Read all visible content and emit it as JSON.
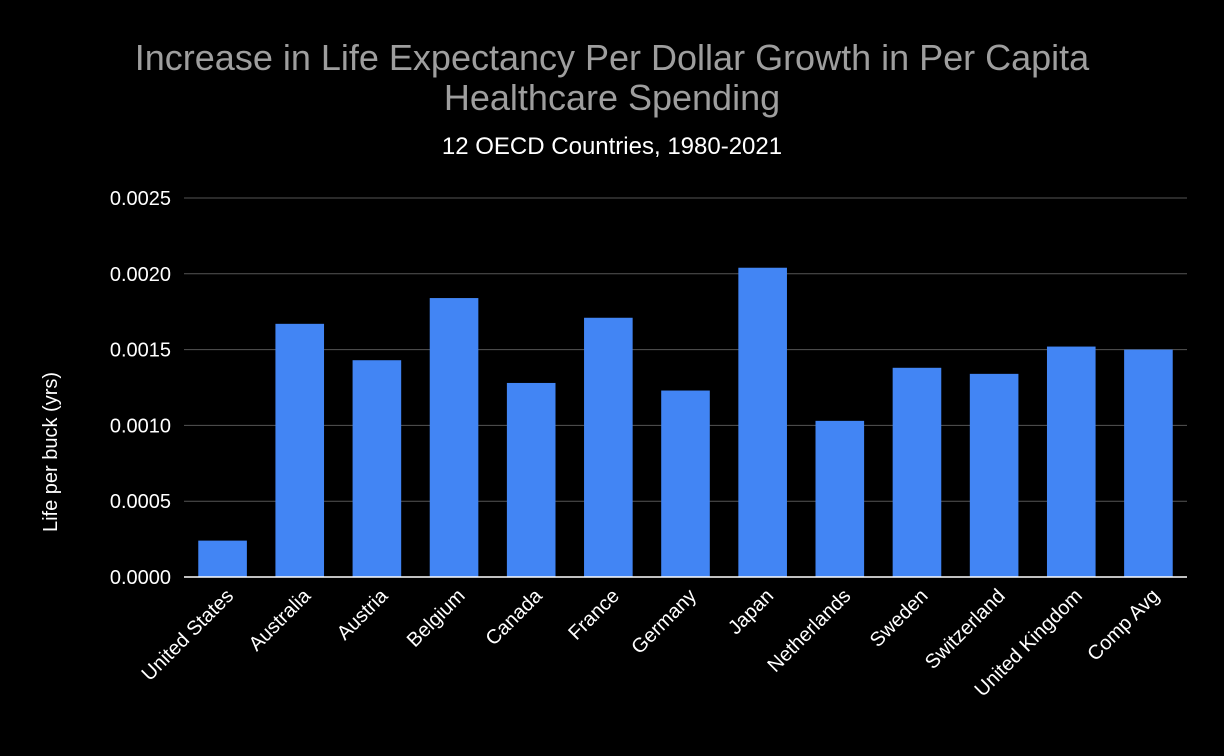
{
  "chart_data": {
    "type": "bar",
    "title_lines": [
      "Increase in Life Expectancy Per Dollar Growth in Per Capita",
      "Healthcare Spending"
    ],
    "subtitle": "12 OECD Countries, 1980-2021",
    "xlabel": "",
    "ylabel": "Life per buck (yrs)",
    "ylim": [
      0,
      0.0025
    ],
    "yticks": [
      "0.0000",
      "0.0005",
      "0.0010",
      "0.0015",
      "0.0020",
      "0.0025"
    ],
    "grid": true,
    "legend": "none",
    "bar_color": "#4285f4",
    "categories": [
      "United States",
      "Australia",
      "Austria",
      "Belgium",
      "Canada",
      "France",
      "Germany",
      "Japan",
      "Netherlands",
      "Sweden",
      "Switzerland",
      "United Kingdom",
      "Comp Avg"
    ],
    "values": [
      0.00024,
      0.00167,
      0.00143,
      0.00184,
      0.00128,
      0.00171,
      0.00123,
      0.00204,
      0.00103,
      0.00138,
      0.00134,
      0.00152,
      0.0015
    ]
  }
}
